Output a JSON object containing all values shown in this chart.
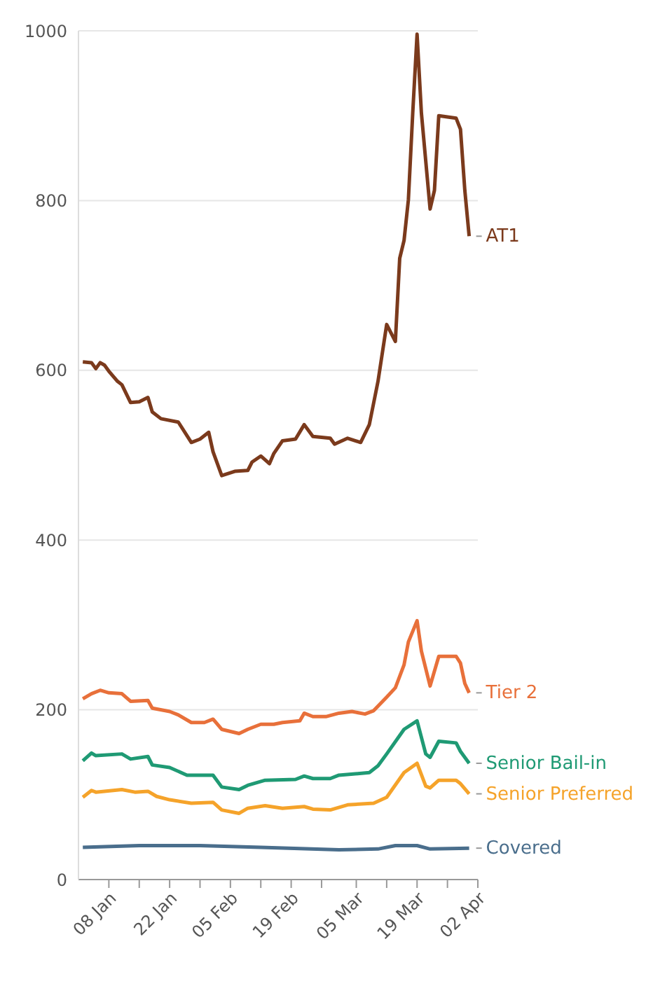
{
  "chart_data": {
    "type": "line",
    "xlim": [
      "--01-01",
      "--04-02"
    ],
    "xticks": [
      {
        "value": "--01-08",
        "label": "08 Jan"
      },
      {
        "value": "--01-15",
        "label": null
      },
      {
        "value": "--01-22",
        "label": "22 Jan"
      },
      {
        "value": "--01-29",
        "label": null
      },
      {
        "value": "--02-05",
        "label": "05 Feb"
      },
      {
        "value": "--02-12",
        "label": null
      },
      {
        "value": "--02-19",
        "label": "19 Feb"
      },
      {
        "value": "--02-26",
        "label": null
      },
      {
        "value": "--03-05",
        "label": "05 Mar"
      },
      {
        "value": "--03-12",
        "label": null
      },
      {
        "value": "--03-19",
        "label": "19 Mar"
      },
      {
        "value": "--03-26",
        "label": null
      },
      {
        "value": "--04-02",
        "label": "02 Apr"
      }
    ],
    "ylim": [
      0,
      1000
    ],
    "yticks": [
      0,
      200,
      400,
      600,
      800,
      1000
    ],
    "grid": "y",
    "marker": "none",
    "line_style": "solid",
    "series": [
      {
        "name": "AT1",
        "color": "#7b3a1c",
        "x": [
          "--01-02",
          "--01-04",
          "--01-05",
          "--01-06",
          "--01-07",
          "--01-08",
          "--01-10",
          "--01-11",
          "--01-13",
          "--01-15",
          "--01-17",
          "--01-18",
          "--01-20",
          "--01-24",
          "--01-27",
          "--01-29",
          "--01-31",
          "--02-01",
          "--02-03",
          "--02-06",
          "--02-09",
          "--02-10",
          "--02-12",
          "--02-14",
          "--02-15",
          "--02-17",
          "--02-20",
          "--02-22",
          "--02-24",
          "--02-28",
          "--02-29",
          "--03-03",
          "--03-06",
          "--03-08",
          "--03-10",
          "--03-12",
          "--03-14",
          "--03-15",
          "--03-16",
          "--03-17",
          "--03-18",
          "--03-19",
          "--03-20",
          "--03-22",
          "--03-23",
          "--03-24",
          "--03-28",
          "--03-29",
          "--03-30",
          "--03-31"
        ],
        "values": [
          610,
          609,
          602,
          609,
          606,
          599,
          587,
          583,
          562,
          563,
          568,
          551,
          543,
          539,
          515,
          519,
          527,
          504,
          476,
          481,
          482,
          492,
          499,
          490,
          502,
          517,
          519,
          536,
          522,
          520,
          513,
          520,
          515,
          536,
          587,
          654,
          634,
          732,
          753,
          801,
          903,
          996,
          903,
          790,
          812,
          900,
          897,
          884,
          812,
          758
        ]
      },
      {
        "name": "Tier 2",
        "color": "#e8703a",
        "x": [
          "--01-02",
          "--01-04",
          "--01-06",
          "--01-08",
          "--01-11",
          "--01-13",
          "--01-17",
          "--01-18",
          "--01-22",
          "--01-24",
          "--01-27",
          "--01-30",
          "--02-01",
          "--02-03",
          "--02-07",
          "--02-09",
          "--02-12",
          "--02-15",
          "--02-17",
          "--02-21",
          "--02-22",
          "--02-24",
          "--02-27",
          "--03-01",
          "--03-04",
          "--03-07",
          "--03-09",
          "--03-12",
          "--03-14",
          "--03-16",
          "--03-17",
          "--03-19",
          "--03-20",
          "--03-22",
          "--03-24",
          "--03-28",
          "--03-29",
          "--03-30",
          "--03-31"
        ],
        "values": [
          213,
          219,
          223,
          220,
          219,
          210,
          211,
          202,
          198,
          194,
          185,
          185,
          189,
          177,
          172,
          177,
          183,
          183,
          185,
          187,
          196,
          192,
          192,
          196,
          198,
          195,
          199,
          215,
          226,
          253,
          280,
          305,
          269,
          228,
          263,
          263,
          255,
          231,
          220
        ]
      },
      {
        "name": "Senior Bail-in",
        "color": "#1f9a74",
        "x": [
          "--01-02",
          "--01-04",
          "--01-05",
          "--01-11",
          "--01-13",
          "--01-17",
          "--01-18",
          "--01-22",
          "--01-26",
          "--02-01",
          "--02-03",
          "--02-07",
          "--02-09",
          "--02-13",
          "--02-20",
          "--02-22",
          "--02-24",
          "--02-28",
          "--03-01",
          "--03-08",
          "--03-10",
          "--03-12",
          "--03-16",
          "--03-19",
          "--03-21",
          "--03-22",
          "--03-24",
          "--03-28",
          "--03-29",
          "--03-31"
        ],
        "values": [
          140,
          149,
          146,
          148,
          142,
          145,
          135,
          132,
          123,
          123,
          109,
          106,
          111,
          117,
          118,
          122,
          119,
          119,
          123,
          126,
          134,
          148,
          177,
          187,
          148,
          144,
          163,
          161,
          151,
          137
        ]
      },
      {
        "name": "Senior Preferred",
        "color": "#f5a32a",
        "x": [
          "--01-02",
          "--01-04",
          "--01-05",
          "--01-11",
          "--01-14",
          "--01-17",
          "--01-19",
          "--01-22",
          "--01-27",
          "--02-01",
          "--02-03",
          "--02-07",
          "--02-09",
          "--02-13",
          "--02-17",
          "--02-22",
          "--02-24",
          "--02-28",
          "--03-03",
          "--03-09",
          "--03-12",
          "--03-16",
          "--03-19",
          "--03-21",
          "--03-22",
          "--03-24",
          "--03-28",
          "--03-29",
          "--03-31"
        ],
        "values": [
          97,
          105,
          103,
          106,
          103,
          104,
          98,
          94,
          90,
          91,
          82,
          78,
          84,
          87,
          84,
          86,
          83,
          82,
          88,
          90,
          97,
          126,
          137,
          110,
          108,
          117,
          117,
          113,
          101
        ]
      },
      {
        "name": "Covered",
        "color": "#4a6e8c",
        "x": [
          "--01-02",
          "--01-15",
          "--01-29",
          "--02-12",
          "--03-01",
          "--03-10",
          "--03-14",
          "--03-19",
          "--03-22",
          "--03-31"
        ],
        "values": [
          38,
          40,
          40,
          38,
          35,
          36,
          40,
          40,
          36,
          37
        ]
      }
    ]
  }
}
